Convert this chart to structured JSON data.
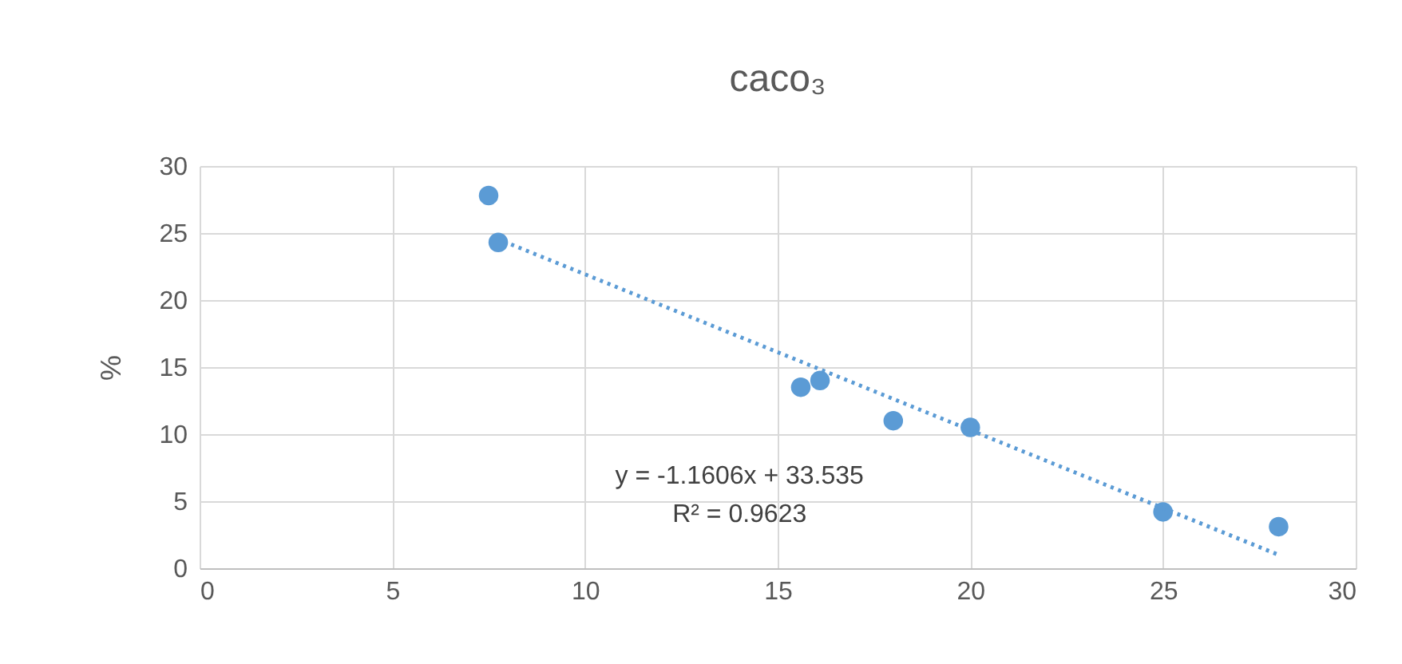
{
  "chart_data": {
    "type": "scatter",
    "title": "caco₃",
    "ylabel": "%",
    "series": [
      {
        "color": "#5b9bd5",
        "marker": "circle",
        "x": [
          7.5,
          7.75,
          15.6,
          16.1,
          18,
          20,
          25,
          28
        ],
        "values": [
          27.8,
          24.3,
          13.5,
          14,
          11,
          10.5,
          4.2,
          3.1
        ]
      },
      {
        "type": "line",
        "color": "#5b9bd5",
        "marker": "none",
        "line_style": "dotted",
        "x": [
          7.7,
          28
        ],
        "values": [
          24.6,
          1.0
        ]
      }
    ],
    "annotations": [
      "y = -1.1606x + 33.535",
      "R² = 0.9623"
    ],
    "xlim": [
      0,
      30
    ],
    "xticks": [
      0,
      5,
      10,
      15,
      20,
      25,
      30
    ],
    "ylim": [
      0,
      30
    ],
    "yticks": [
      0,
      5,
      10,
      15,
      20,
      25,
      30
    ],
    "grid": true
  }
}
